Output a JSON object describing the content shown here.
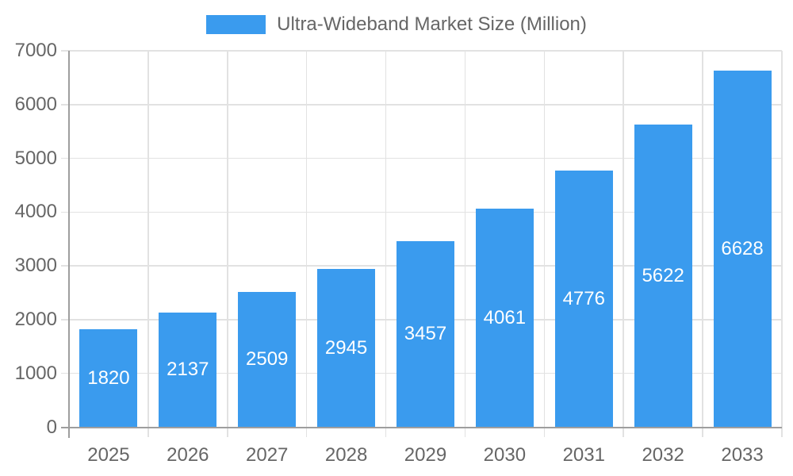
{
  "chart_data": {
    "type": "bar",
    "title": "Ultra-Wideband Market Size (Million)",
    "legend_position": "top",
    "categories": [
      "2025",
      "2026",
      "2027",
      "2028",
      "2029",
      "2030",
      "2031",
      "2032",
      "2033"
    ],
    "values": [
      1820,
      2137,
      2509,
      2945,
      3457,
      4061,
      4776,
      5622,
      6628
    ],
    "xlabel": "",
    "ylabel": "",
    "ylim": [
      0,
      7000
    ],
    "yticks": [
      0,
      1000,
      2000,
      3000,
      4000,
      5000,
      6000,
      7000
    ],
    "grid": true,
    "colors": {
      "bar": "#3A9BEE",
      "bar_label": "#ffffff",
      "axis_text": "#666666",
      "gridline": "#E2E2E2",
      "axis_line": "#9E9E9E"
    }
  }
}
